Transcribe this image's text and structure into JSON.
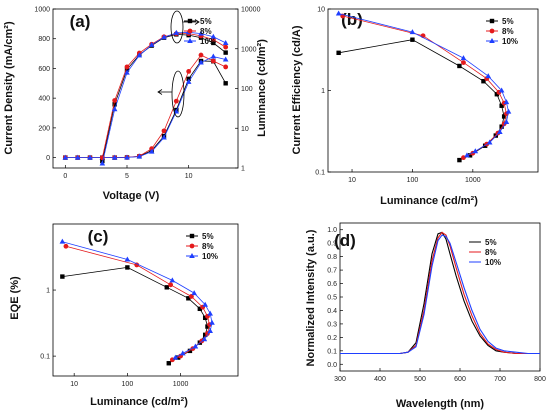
{
  "chart_data": [
    {
      "type": "line",
      "panel": "(a)",
      "xlabel": "Voltage (V)",
      "ylabel": "Current Density (mA/cm²)",
      "ylabel_right": "Luminance (cd/m²)",
      "xlim": [
        -1,
        14
      ],
      "ylim": [
        -70,
        1000
      ],
      "ylim_right": [
        1,
        10000
      ],
      "y_right_scale": "log",
      "xticks": [
        "0",
        "5",
        "10"
      ],
      "yticks": [
        "0",
        "200",
        "400",
        "600",
        "800",
        "1000"
      ],
      "yticks_right": [
        "1",
        "10",
        "100",
        "1000",
        "10000"
      ],
      "legend": "top-right",
      "series": [
        {
          "name": "5%",
          "color": "#000000",
          "marker": "square",
          "axis": "left",
          "x": [
            0,
            1,
            2,
            3,
            4,
            5,
            6,
            7,
            8,
            9,
            10,
            11,
            12,
            13
          ],
          "y": [
            0,
            0,
            0,
            0,
            0,
            1,
            8,
            48,
            145,
            320,
            530,
            650,
            648,
            500
          ]
        },
        {
          "name": "8%",
          "color": "#e41a1c",
          "marker": "circle",
          "axis": "left",
          "x": [
            0,
            1,
            2,
            3,
            4,
            5,
            6,
            7,
            8,
            9,
            10,
            11,
            12,
            13
          ],
          "y": [
            0,
            0,
            0,
            0,
            0,
            1,
            10,
            60,
            180,
            380,
            580,
            690,
            650,
            610
          ]
        },
        {
          "name": "10%",
          "color": "#1f3fff",
          "marker": "triangle",
          "axis": "left",
          "x": [
            0,
            1,
            2,
            3,
            4,
            5,
            6,
            7,
            8,
            9,
            10,
            11,
            12,
            13
          ],
          "y": [
            0,
            0,
            0,
            0,
            0,
            1,
            7,
            40,
            135,
            310,
            510,
            640,
            680,
            660
          ]
        },
        {
          "name": "5%",
          "color": "#000000",
          "marker": "square",
          "axis": "right",
          "x": [
            3,
            4,
            5,
            6,
            7,
            8,
            9,
            10,
            11,
            12,
            13
          ],
          "y": [
            1.5,
            40,
            300,
            700,
            1200,
            1900,
            2300,
            2200,
            1900,
            1400,
            800
          ]
        },
        {
          "name": "8%",
          "color": "#e41a1c",
          "marker": "circle",
          "axis": "right",
          "x": [
            3,
            4,
            5,
            6,
            7,
            8,
            9,
            10,
            11,
            12,
            13
          ],
          "y": [
            1.8,
            50,
            350,
            780,
            1300,
            2000,
            2400,
            2400,
            2100,
            1700,
            1100
          ]
        },
        {
          "name": "10%",
          "color": "#1f3fff",
          "marker": "triangle",
          "axis": "right",
          "x": [
            3,
            4,
            5,
            6,
            7,
            8,
            9,
            10,
            11,
            12,
            13
          ],
          "y": [
            1.3,
            30,
            250,
            680,
            1250,
            1950,
            2500,
            2600,
            2400,
            2000,
            1400
          ]
        }
      ]
    },
    {
      "type": "line",
      "panel": "(b)",
      "xlabel": "Luminance (cd/m²)",
      "ylabel": "Current Efficiency (cd/A)",
      "x_scale": "log",
      "y_scale": "log",
      "xlim": [
        4,
        12000
      ],
      "ylim": [
        0.1,
        10
      ],
      "xticks": [
        "10",
        "100",
        "1000"
      ],
      "yticks": [
        "0.1",
        "1",
        "10"
      ],
      "legend": "top-right",
      "series": [
        {
          "name": "5%",
          "color": "#000000",
          "marker": "square",
          "x": [
            6,
            100,
            600,
            1500,
            2500,
            3000,
            3300,
            3000,
            2400,
            1600,
            900,
            600
          ],
          "y": [
            2.9,
            4.2,
            2.0,
            1.3,
            0.9,
            0.65,
            0.48,
            0.36,
            0.28,
            0.21,
            0.16,
            0.14
          ]
        },
        {
          "name": "8%",
          "color": "#e41a1c",
          "marker": "circle",
          "x": [
            7,
            150,
            700,
            1700,
            2700,
            3300,
            3600,
            3300,
            2600,
            1700,
            1000,
            700
          ],
          "y": [
            8.2,
            4.7,
            2.2,
            1.4,
            0.95,
            0.7,
            0.52,
            0.39,
            0.3,
            0.22,
            0.17,
            0.15
          ]
        },
        {
          "name": "10%",
          "color": "#1f3fff",
          "marker": "triangle",
          "x": [
            6,
            100,
            700,
            1800,
            3000,
            3600,
            3900,
            3600,
            2800,
            1900,
            1100,
            800
          ],
          "y": [
            8.8,
            5.2,
            2.5,
            1.5,
            1.0,
            0.72,
            0.55,
            0.41,
            0.31,
            0.23,
            0.18,
            0.16
          ]
        }
      ]
    },
    {
      "type": "line",
      "panel": "(c)",
      "xlabel": "Luminance (cd/m²)",
      "ylabel": "EQE (%)",
      "x_scale": "log",
      "y_scale": "log",
      "xlim": [
        4,
        12000
      ],
      "ylim": [
        0.05,
        10
      ],
      "xticks": [
        "10",
        "100",
        "1000"
      ],
      "yticks": [
        "0.1",
        "1"
      ],
      "legend": "top-right",
      "series": [
        {
          "name": "5%",
          "color": "#000000",
          "marker": "square",
          "x": [
            6,
            100,
            550,
            1400,
            2300,
            2900,
            3200,
            2900,
            2300,
            1500,
            900,
            600
          ],
          "y": [
            1.6,
            2.2,
            1.1,
            0.75,
            0.52,
            0.38,
            0.28,
            0.21,
            0.16,
            0.12,
            0.095,
            0.078
          ]
        },
        {
          "name": "8%",
          "color": "#e41a1c",
          "marker": "circle",
          "x": [
            7,
            150,
            650,
            1600,
            2600,
            3200,
            3500,
            3200,
            2500,
            1700,
            1000,
            700
          ],
          "y": [
            4.6,
            2.4,
            1.2,
            0.8,
            0.55,
            0.4,
            0.3,
            0.22,
            0.17,
            0.13,
            0.1,
            0.088
          ]
        },
        {
          "name": "10%",
          "color": "#1f3fff",
          "marker": "triangle",
          "x": [
            6,
            100,
            700,
            1800,
            2900,
            3600,
            3900,
            3600,
            2800,
            1900,
            1100,
            800
          ],
          "y": [
            5.4,
            2.9,
            1.4,
            0.9,
            0.6,
            0.44,
            0.32,
            0.24,
            0.18,
            0.14,
            0.11,
            0.095
          ]
        }
      ]
    },
    {
      "type": "line",
      "panel": "(d)",
      "xlabel": "Wavelength (nm)",
      "ylabel": "Normalized Intensity (a.u.)",
      "xlim": [
        300,
        800
      ],
      "ylim": [
        -0.05,
        1.05
      ],
      "xticks": [
        "300",
        "400",
        "500",
        "600",
        "700",
        "800"
      ],
      "yticks": [
        "0.0",
        "0.1",
        "0.2",
        "0.3",
        "0.4",
        "0.5",
        "0.6",
        "0.7",
        "0.8",
        "0.9",
        "1.0"
      ],
      "legend": "top-right",
      "series": [
        {
          "name": "5%",
          "color": "#000000",
          "x": [
            300,
            350,
            400,
            450,
            470,
            490,
            510,
            530,
            545,
            555,
            565,
            575,
            590,
            610,
            630,
            650,
            670,
            690,
            710,
            740,
            770,
            800
          ],
          "y": [
            0.08,
            0.08,
            0.08,
            0.08,
            0.09,
            0.16,
            0.45,
            0.82,
            0.97,
            0.98,
            0.93,
            0.82,
            0.66,
            0.47,
            0.32,
            0.21,
            0.14,
            0.1,
            0.09,
            0.08,
            0.08,
            0.08
          ]
        },
        {
          "name": "8%",
          "color": "#e41a1c",
          "x": [
            300,
            350,
            400,
            450,
            470,
            490,
            510,
            530,
            545,
            555,
            565,
            575,
            590,
            610,
            630,
            650,
            670,
            690,
            710,
            740,
            770,
            800
          ],
          "y": [
            0.08,
            0.08,
            0.08,
            0.08,
            0.09,
            0.14,
            0.4,
            0.77,
            0.94,
            0.98,
            0.96,
            0.88,
            0.72,
            0.52,
            0.36,
            0.23,
            0.15,
            0.11,
            0.09,
            0.08,
            0.08,
            0.08
          ]
        },
        {
          "name": "10%",
          "color": "#1f3fff",
          "x": [
            300,
            350,
            400,
            450,
            470,
            490,
            510,
            530,
            545,
            555,
            565,
            575,
            590,
            610,
            630,
            650,
            670,
            690,
            710,
            740,
            770,
            800
          ],
          "y": [
            0.08,
            0.08,
            0.08,
            0.08,
            0.09,
            0.13,
            0.37,
            0.73,
            0.92,
            0.96,
            0.95,
            0.9,
            0.76,
            0.57,
            0.4,
            0.26,
            0.17,
            0.12,
            0.1,
            0.09,
            0.08,
            0.08
          ]
        }
      ]
    }
  ]
}
